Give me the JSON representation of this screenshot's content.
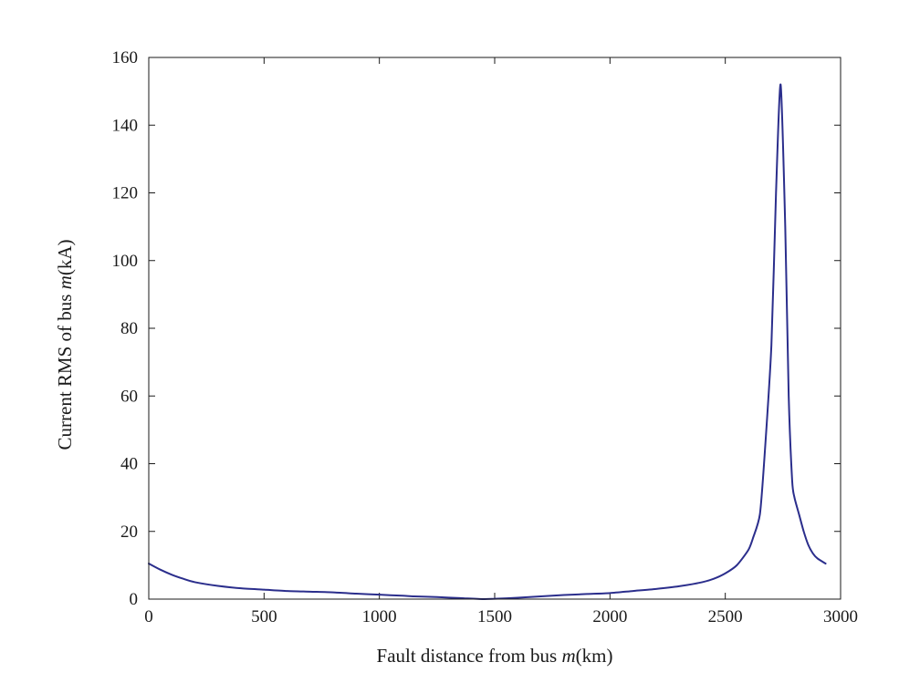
{
  "chart_data": {
    "type": "line",
    "title": "",
    "xlabel": {
      "prefix": "Fault distance from bus ",
      "var": "m",
      "suffix": "(km)"
    },
    "ylabel": {
      "prefix": "Current RMS of  bus ",
      "var": "m",
      "suffix": "(kA)"
    },
    "xlim": [
      0,
      3000
    ],
    "ylim": [
      0,
      160
    ],
    "xticks": [
      0,
      500,
      1000,
      1500,
      2000,
      2500,
      3000
    ],
    "yticks": [
      0,
      20,
      40,
      60,
      80,
      100,
      120,
      140,
      160
    ],
    "grid": false,
    "line_color": "#2b2e8c",
    "series": [
      {
        "x": [
          0,
          50,
          100,
          150,
          200,
          300,
          400,
          500,
          600,
          700,
          800,
          900,
          1000,
          1100,
          1150,
          1250,
          1350,
          1450,
          1500,
          1600,
          1700,
          1800,
          1900,
          2000,
          2100,
          2200,
          2300,
          2400,
          2450,
          2500,
          2550,
          2600,
          2620,
          2650,
          2670,
          2700,
          2720,
          2740,
          2760,
          2775,
          2790,
          2800,
          2820,
          2840,
          2860,
          2880,
          2900,
          2935
        ],
        "y": [
          10.5,
          8.7,
          7.2,
          6.0,
          5.0,
          3.9,
          3.2,
          2.8,
          2.4,
          2.2,
          2.0,
          1.6,
          1.3,
          1.0,
          0.8,
          0.6,
          0.3,
          0.0,
          0.1,
          0.4,
          0.8,
          1.2,
          1.5,
          1.8,
          2.4,
          3.0,
          3.8,
          5.0,
          6.0,
          7.6,
          10.0,
          14.5,
          18.0,
          25.0,
          42.0,
          75.0,
          120.0,
          152.0,
          110.0,
          60.0,
          35.0,
          30.0,
          25.0,
          20.0,
          16.0,
          13.5,
          12.0,
          10.5
        ]
      }
    ]
  }
}
